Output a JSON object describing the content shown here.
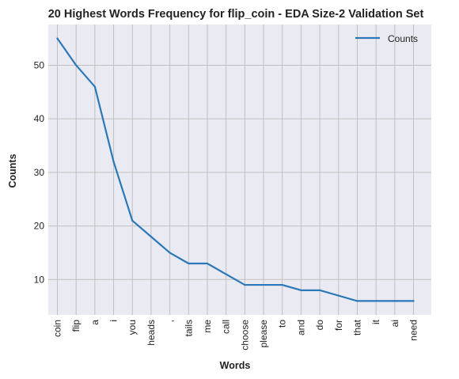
{
  "chart_data": {
    "type": "line",
    "title": "20 Highest Words Frequency for flip_coin - EDA Size-2 Validation Set",
    "xlabel": "Words",
    "ylabel": "Counts",
    "categories": [
      "coin",
      "flip",
      "a",
      "i",
      "you",
      "heads",
      ",",
      "tails",
      "me",
      "call",
      "choose",
      "please",
      "to",
      "and",
      "do",
      "for",
      "that",
      "it",
      "ai",
      "need"
    ],
    "series": [
      {
        "name": "Counts",
        "values": [
          55,
          50,
          46,
          32,
          21,
          18,
          15,
          13,
          13,
          11,
          9,
          9,
          9,
          8,
          8,
          7,
          6,
          6,
          6,
          6
        ]
      }
    ],
    "ylim": [
      3.4,
      57.6
    ],
    "yticks": [
      10,
      20,
      30,
      40,
      50
    ],
    "grid": true,
    "legend": "top-right",
    "colors": {
      "line": "#2b78b8",
      "plot_bg": "#eaeaf2",
      "grid": "#c0c0c0"
    }
  }
}
